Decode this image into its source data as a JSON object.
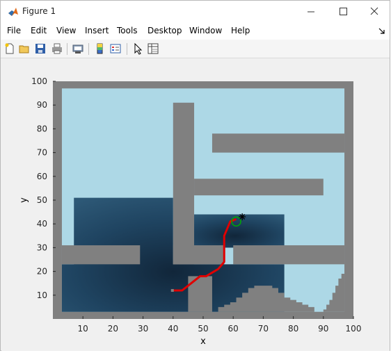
{
  "window": {
    "title": "Figure 1",
    "controls": {
      "minimize": "minimize",
      "maximize": "maximize",
      "close": "close"
    }
  },
  "menu": {
    "items": [
      {
        "label": "File"
      },
      {
        "label": "Edit"
      },
      {
        "label": "View"
      },
      {
        "label": "Insert"
      },
      {
        "label": "Tools"
      },
      {
        "label": "Desktop"
      },
      {
        "label": "Window"
      },
      {
        "label": "Help"
      }
    ]
  },
  "toolbar": {
    "buttons": [
      "new-figure-icon",
      "open-file-icon",
      "save-icon",
      "print-icon",
      "print-preview-icon",
      "colorbar-icon",
      "legend-icon",
      "pointer-icon",
      "property-inspector-icon"
    ]
  },
  "colors": {
    "free_space": "#add8e6",
    "obstacle": "#808080",
    "explored": "#1e3f5c",
    "path": "#e00000",
    "start_marker": "#00aa00",
    "goal_marker": "#000000"
  },
  "chart_data": {
    "type": "heatmap",
    "title": "",
    "xlabel": "x",
    "ylabel": "y",
    "xlim": [
      0,
      100
    ],
    "ylim": [
      0,
      100
    ],
    "xticks": [
      "10",
      "20",
      "30",
      "40",
      "50",
      "60",
      "70",
      "80",
      "90",
      "100"
    ],
    "yticks": [
      "10",
      "20",
      "30",
      "40",
      "50",
      "60",
      "70",
      "80",
      "90",
      "100"
    ],
    "description_layers": {
      "map": "occupancy grid (light blue = free, gray = obstacle)",
      "explored": "shaded region of explored cells"
    },
    "path": {
      "x": [
        40,
        43,
        46,
        49,
        51,
        55,
        57,
        57,
        58,
        59,
        61
      ],
      "y": [
        12,
        12,
        15,
        18,
        18,
        21,
        24,
        35,
        38,
        41,
        42
      ]
    },
    "start": {
      "x": 61,
      "y": 41,
      "marker": "circle"
    },
    "goal": {
      "x": 63,
      "y": 43,
      "marker": "asterisk"
    }
  }
}
